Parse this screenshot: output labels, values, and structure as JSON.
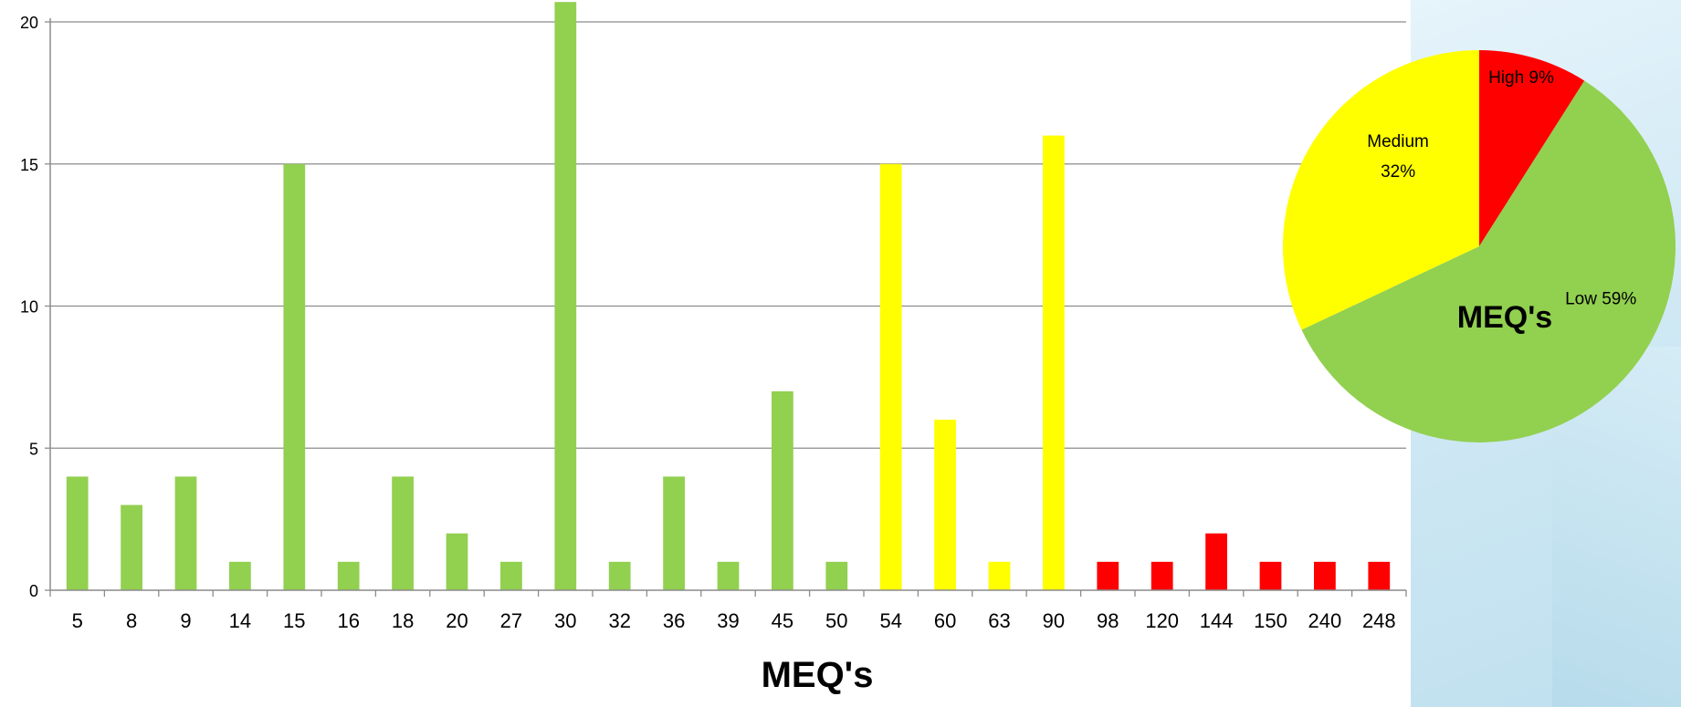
{
  "slide": {
    "title_fragment": "",
    "colors": {
      "low": "#92d050",
      "medium": "#ffff00",
      "high": "#ff0000",
      "title": "#7030a0"
    }
  },
  "chart_data": [
    {
      "type": "bar",
      "xlabel": "MEQ's",
      "ylabel": "",
      "ylim": [
        0,
        20
      ],
      "yticks": [
        0,
        5,
        10,
        15,
        20
      ],
      "grid": true,
      "categories": [
        "5",
        "8",
        "9",
        "14",
        "15",
        "16",
        "18",
        "20",
        "27",
        "30",
        "32",
        "36",
        "39",
        "45",
        "50",
        "54",
        "60",
        "63",
        "90",
        "98",
        "120",
        "144",
        "150",
        "240",
        "248"
      ],
      "values": [
        4,
        3,
        4,
        1,
        15,
        1,
        4,
        2,
        1,
        20.7,
        1,
        4,
        1,
        7,
        1,
        15,
        6,
        1,
        16,
        1,
        1,
        2,
        1,
        1,
        1
      ],
      "bar_groups": [
        "low",
        "low",
        "low",
        "low",
        "low",
        "low",
        "low",
        "low",
        "low",
        "low",
        "low",
        "low",
        "low",
        "low",
        "low",
        "medium",
        "medium",
        "medium",
        "medium",
        "high",
        "high",
        "high",
        "high",
        "high",
        "high"
      ]
    },
    {
      "type": "pie",
      "title": "MEQ's",
      "slices": [
        {
          "label": "High",
          "percent_label": "9%",
          "value": 9,
          "group": "high"
        },
        {
          "label": "Low",
          "percent_label": "59%",
          "value": 59,
          "group": "low"
        },
        {
          "label": "Medium",
          "percent_label": "32%",
          "value": 32,
          "group": "medium"
        }
      ]
    }
  ]
}
